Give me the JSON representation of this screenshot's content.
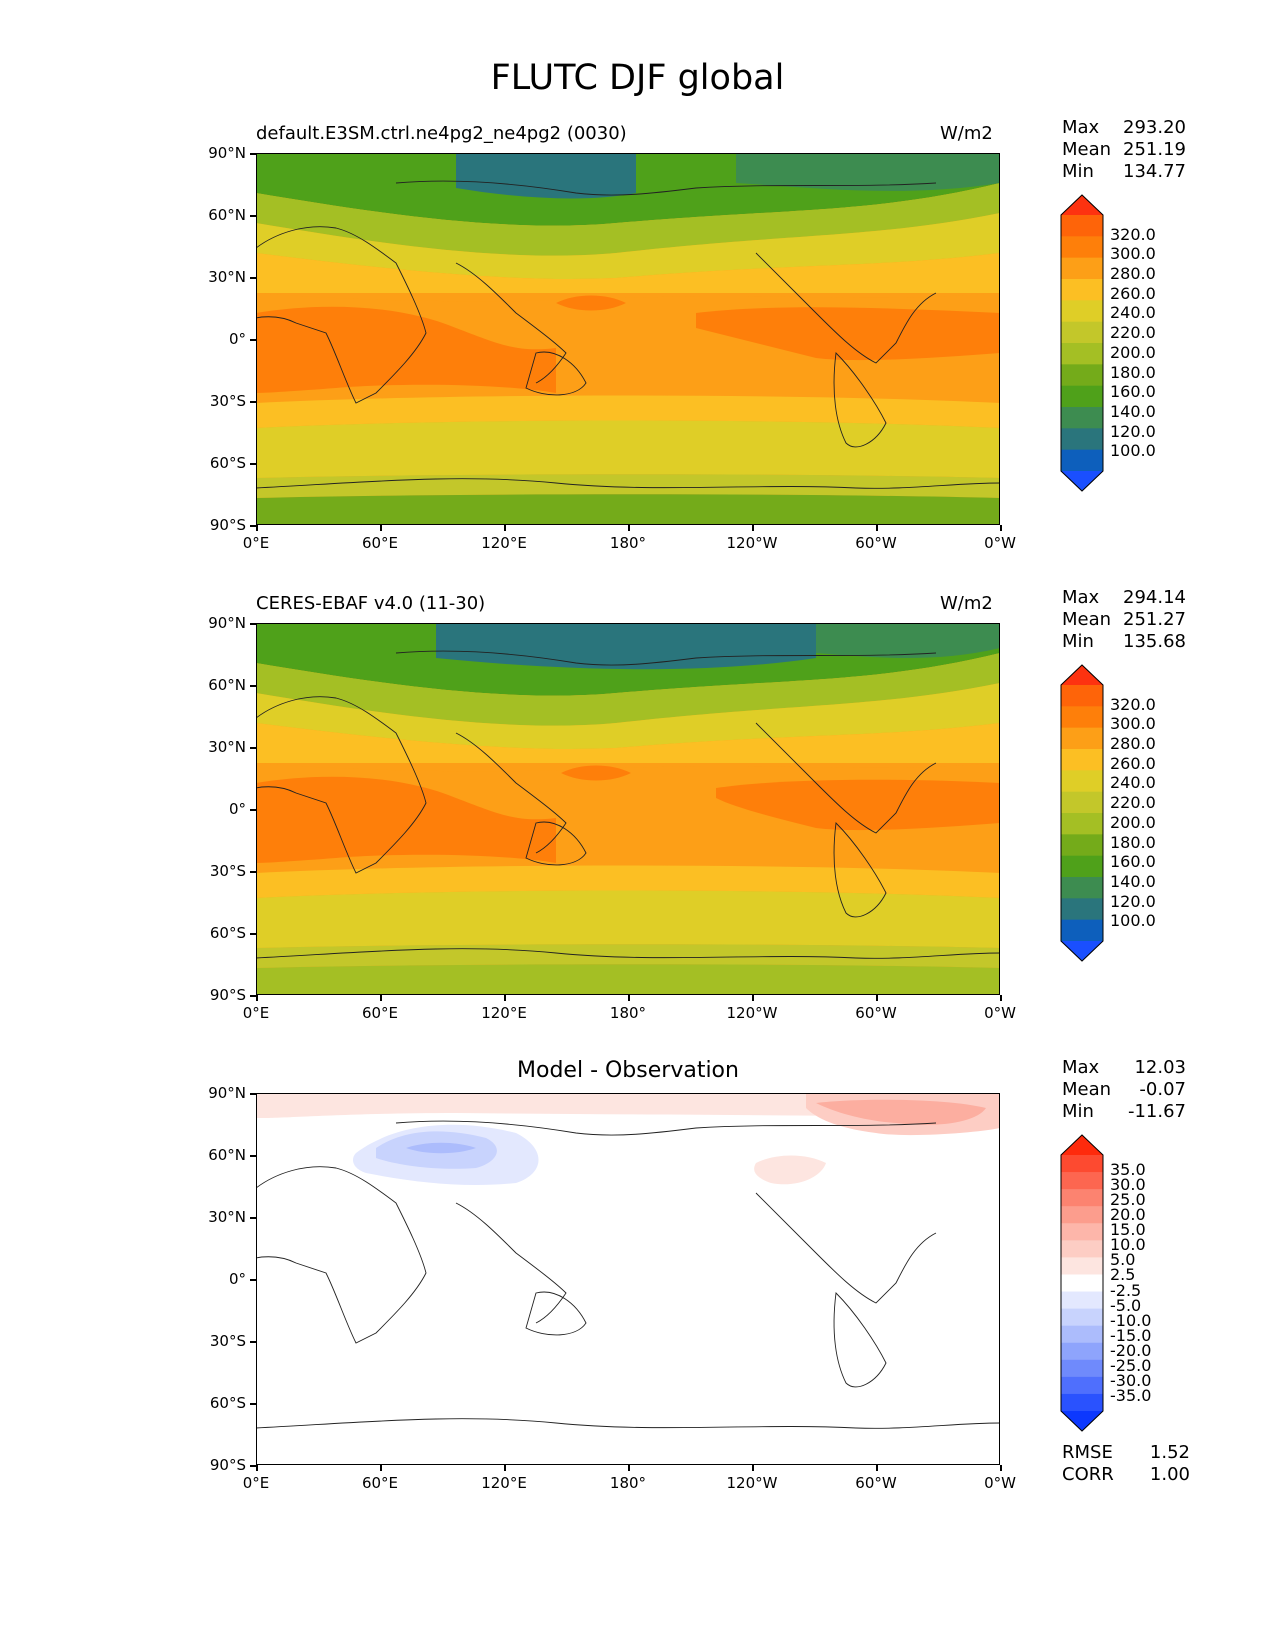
{
  "figure_title": "FLUTC DJF global",
  "axes": {
    "lat_labels": [
      "90°N",
      "60°N",
      "30°N",
      "0°",
      "30°S",
      "60°S",
      "90°S"
    ],
    "lon_labels": [
      "0°E",
      "60°E",
      "120°E",
      "180°",
      "120°W",
      "60°W",
      "0°W"
    ]
  },
  "panels": [
    {
      "title_left": "default.E3SM.ctrl.ne4pg2_ne4pg2 (0030)",
      "title_right": "W/m2",
      "stats": [
        {
          "label": "Max",
          "value": "293.20"
        },
        {
          "label": "Mean",
          "value": "251.19"
        },
        {
          "label": "Min",
          "value": "134.77"
        }
      ],
      "colorbar": {
        "labels": [
          "320.0",
          "300.0",
          "280.0",
          "260.0",
          "240.0",
          "220.0",
          "200.0",
          "180.0",
          "160.0",
          "140.0",
          "120.0",
          "100.0"
        ],
        "colors": [
          "#fd3210",
          "#fe6409",
          "#fe7f0a",
          "#fd9f17",
          "#fcbf23",
          "#dfce27",
          "#c3c72a",
          "#a4bf24",
          "#74ab1a",
          "#4fa11a",
          "#3d8c50",
          "#2a757c",
          "#0d5fbc",
          "#1a4ffe"
        ]
      }
    },
    {
      "title_left": "CERES-EBAF v4.0 (11-30)",
      "title_right": "W/m2",
      "stats": [
        {
          "label": "Max",
          "value": "294.14"
        },
        {
          "label": "Mean",
          "value": "251.27"
        },
        {
          "label": "Min",
          "value": "135.68"
        }
      ],
      "colorbar": {
        "labels": [
          "320.0",
          "300.0",
          "280.0",
          "260.0",
          "240.0",
          "220.0",
          "200.0",
          "180.0",
          "160.0",
          "140.0",
          "120.0",
          "100.0"
        ],
        "colors": [
          "#fd3210",
          "#fe6409",
          "#fe7f0a",
          "#fd9f17",
          "#fcbf23",
          "#dfce27",
          "#c3c72a",
          "#a4bf24",
          "#74ab1a",
          "#4fa11a",
          "#3d8c50",
          "#2a757c",
          "#0d5fbc",
          "#1a4ffe"
        ]
      }
    },
    {
      "title_center": "Model - Observation",
      "stats": [
        {
          "label": "Max",
          "value": "12.03"
        },
        {
          "label": "Mean",
          "value": "-0.07"
        },
        {
          "label": "Min",
          "value": "-11.67"
        }
      ],
      "colorbar": {
        "labels": [
          "35.0",
          "30.0",
          "25.0",
          "20.0",
          "15.0",
          "10.0",
          "5.0",
          "2.5",
          "-2.5",
          "-5.0",
          "-10.0",
          "-15.0",
          "-20.0",
          "-25.0",
          "-30.0",
          "-35.0"
        ],
        "colors": [
          "#fe2a0c",
          "#fd4a30",
          "#fd6650",
          "#fc8370",
          "#fc9d8d",
          "#fdb6aa",
          "#fdcdc4",
          "#fde5e0",
          "#ffffff",
          "#e3e8fe",
          "#c8d3fd",
          "#acbcfc",
          "#8ea4fc",
          "#6f8afc",
          "#4f6ffd",
          "#2a52fe",
          "#0c38fe"
        ]
      },
      "rmse": [
        {
          "label": "RMSE",
          "value": "1.52"
        },
        {
          "label": "CORR",
          "value": "1.00"
        }
      ]
    }
  ]
}
